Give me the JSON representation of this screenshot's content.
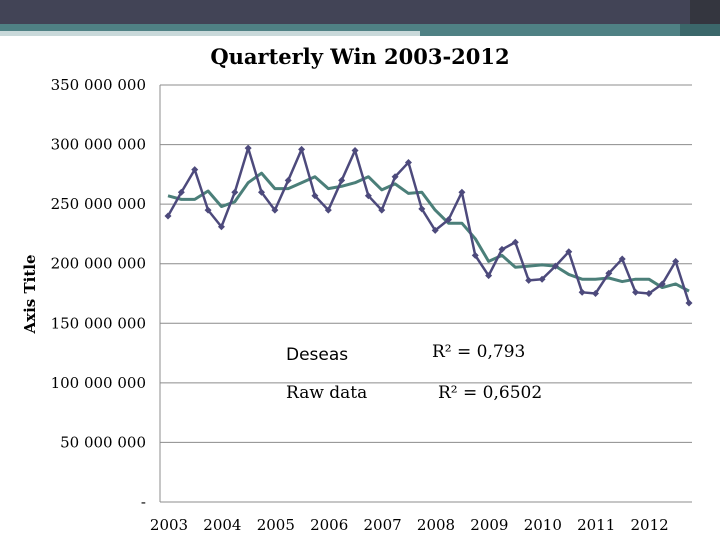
{
  "chart_data": {
    "type": "line",
    "title": "Quarterly Win 2003-2012",
    "ylabel": "Axis Title",
    "xlabel": "",
    "ylim": [
      0,
      350000000
    ],
    "y_ticks": [
      0,
      50000000,
      100000000,
      150000000,
      200000000,
      250000000,
      300000000,
      350000000
    ],
    "y_tick_labels": [
      "-",
      "50 000 000",
      "100 000 000",
      "150 000 000",
      "200 000 000",
      "250 000 000",
      "300 000 000",
      "350 000 000"
    ],
    "x_tick_labels": [
      "2003",
      "2004",
      "2005",
      "2006",
      "2007",
      "2008",
      "2009",
      "2010",
      "2011",
      "2012"
    ],
    "grid": "horizontal",
    "series": [
      {
        "name": "Raw data",
        "color": "#4d4a7c",
        "marker": "diamond",
        "values": [
          240000000,
          260000000,
          279000000,
          245000000,
          231000000,
          260000000,
          297000000,
          260000000,
          245000000,
          270000000,
          296000000,
          257000000,
          245000000,
          270000000,
          295000000,
          257000000,
          245000000,
          273000000,
          285000000,
          246000000,
          228000000,
          237000000,
          260000000,
          207000000,
          190000000,
          212000000,
          218000000,
          186000000,
          187000000,
          198000000,
          210000000,
          176000000,
          175000000,
          192000000,
          204000000,
          176000000,
          175000000,
          183000000,
          202000000,
          167000000
        ]
      },
      {
        "name": "Deseas",
        "color": "#4b7f79",
        "marker": "none",
        "values": [
          257000000,
          254000000,
          254000000,
          261000000,
          248000000,
          252000000,
          268000000,
          276000000,
          263000000,
          263000000,
          268000000,
          273000000,
          263000000,
          265000000,
          268000000,
          273000000,
          262000000,
          267000000,
          259000000,
          260000000,
          245000000,
          234000000,
          234000000,
          221000000,
          202000000,
          207000000,
          197000000,
          198000000,
          199000000,
          198000000,
          191000000,
          187000000,
          187000000,
          188000000,
          185000000,
          187000000,
          187000000,
          180000000,
          183000000,
          177000000
        ]
      }
    ],
    "annotations": [
      {
        "label": "Deseas",
        "r2": "R² = 0,793"
      },
      {
        "label": "Raw data",
        "r2": "R² = 0,6502"
      }
    ]
  }
}
